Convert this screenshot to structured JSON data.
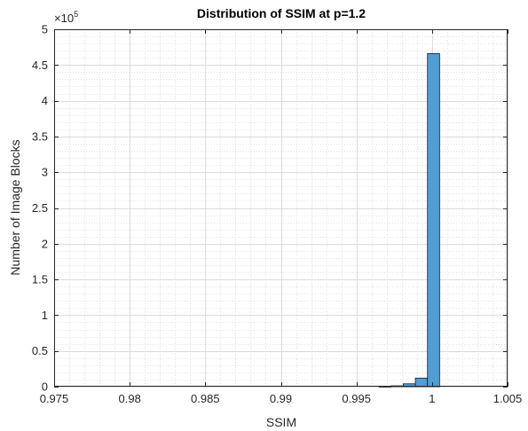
{
  "chart_data": {
    "type": "bar",
    "title": "Distribution of SSIM at p=1.2",
    "xlabel": "SSIM",
    "ylabel": "Number of Image Blocks",
    "y_exponent_label": "×10",
    "y_exponent": "5",
    "xlim": [
      0.975,
      1.005
    ],
    "ylim": [
      0,
      500000
    ],
    "x_ticks": [
      0.975,
      0.98,
      0.985,
      0.99,
      0.995,
      1,
      1.005
    ],
    "x_tick_labels": [
      "0.975",
      "0.98",
      "0.985",
      "0.99",
      "0.995",
      "1",
      "1.005"
    ],
    "y_ticks": [
      0,
      50000,
      100000,
      150000,
      200000,
      250000,
      300000,
      350000,
      400000,
      450000,
      500000
    ],
    "y_tick_labels": [
      "0",
      "0.5",
      "1",
      "1.5",
      "2",
      "2.5",
      "3",
      "3.5",
      "4",
      "4.5",
      "5"
    ],
    "grid": true,
    "minor_grid": true,
    "bar_color": "#4f9fd6",
    "bar_edge_color": "#1a1a1a",
    "bins": [
      {
        "x0": 0.9965,
        "x1": 0.9973,
        "value": 100
      },
      {
        "x0": 0.9973,
        "x1": 0.9981,
        "value": 1200
      },
      {
        "x0": 0.9981,
        "x1": 0.9989,
        "value": 4000
      },
      {
        "x0": 0.9989,
        "x1": 0.9997,
        "value": 12000
      },
      {
        "x0": 0.9997,
        "x1": 1.0005,
        "value": 466000
      }
    ]
  }
}
